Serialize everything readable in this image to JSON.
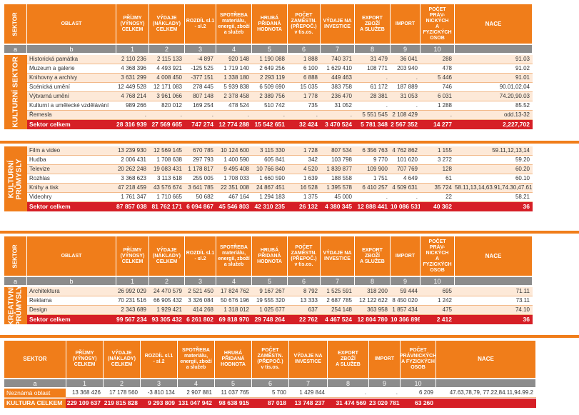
{
  "headers": {
    "sektor": "SEKTOR",
    "oblast": "OBLAST",
    "cols": [
      "PŘÍJMY\n(VÝNOSY)\nCELKEM",
      "VÝDAJE\n(NÁKLADY)\nCELKEM",
      "ROZDÍL sl.1\n- sl.2",
      "SPOTŘEBA\nmateriálu,\nenergií, zboží\na služeb",
      "HRUBÁ\nPŘIDANÁ\nHODNOTA",
      "POČET\nZAMĚSTN.\n(PŘEPOČ.)\nv tis.os.",
      "VÝDAJE NA\nINVESTICE",
      "EXPORT\nZBOŽÍ\nA SLUŽEB",
      "IMPORT",
      "POČET PRÁV-\nNICKÝCH\nA FYZICKÝCH\nOSOB",
      "NACE"
    ],
    "cols_last": [
      "PŘÍJMY\n(VÝNOSY)\nCELKEM",
      "VÝDAJE\n(NÁKLADY)\nCELKEM",
      "ROZDÍL sl.1\n- sl.2",
      "SPOTŘEBA\nmateriálu,\nenergií, zboží\na služeb",
      "HRUBÁ\nPŘIDANÁ\nHODNOTA",
      "POČET\nZAMĚSTN.\n(PŘEPOČ.)\nv tis.os.",
      "VÝDAJE NA\nINVESTICE",
      "EXPORT\nZBOŽÍ\nA SLUŽEB",
      "IMPORT",
      "POČET\nPRÁVNICKÝCH\nA FYZICKÝCH\nOSOB",
      "NACE"
    ],
    "index_row": [
      "a",
      "b",
      "1",
      "2",
      "3",
      "4",
      "5",
      "6",
      "7",
      "8",
      "9",
      "10",
      ""
    ],
    "index_row_last": [
      "a",
      "1",
      "2",
      "3",
      "4",
      "5",
      "6",
      "7",
      "8",
      "9",
      "10",
      ""
    ]
  },
  "sectors": [
    {
      "label": "KULTURNÍ SEKTOR",
      "rows": [
        [
          "Historická památka",
          "2 110 236",
          "2 115 133",
          "-4 897",
          "920 148",
          "1 190 088",
          "1 888",
          "740 371",
          "31 479",
          "36 041",
          "288",
          "91.03"
        ],
        [
          "Muzeum a galerie",
          "4 368 396",
          "4 493 921",
          "-125 525",
          "1 719 140",
          "2 649 256",
          "6 100",
          "1 629 410",
          "108 771",
          "203 940",
          "478",
          "91.02"
        ],
        [
          "Knihovny a archivy",
          "3 631 299",
          "4 008 450",
          "-377 151",
          "1 338 180",
          "2 293 119",
          "6 888",
          "449 463",
          ".",
          ".",
          "5 446",
          "91.01"
        ],
        [
          "Scénická umění",
          "12 449 528",
          "12 171 083",
          "278 445",
          "5 939 838",
          "6 509 690",
          "15 035",
          "383 758",
          "61 172",
          "187 889",
          "746",
          "90.01,02,04"
        ],
        [
          "Výtvarná umění",
          "4 768 214",
          "3 961 066",
          "807 148",
          "2 378 458",
          "2 389 756",
          "1 778",
          "236 470",
          "28 381",
          "31 053",
          "6 031",
          "74.20,90.03"
        ],
        [
          "Kulturní a umělecké vzdělávání",
          "989 266",
          "820 012",
          "169 254",
          "478 524",
          "510 742",
          "735",
          "31 052",
          ".",
          ".",
          "1 288",
          "85.52"
        ],
        [
          "Řemesla",
          ".",
          ".",
          ".",
          ".",
          ".",
          ".",
          ".",
          "5 551 545",
          "2 108 429",
          ".",
          "odd.13-32"
        ]
      ],
      "total": [
        "Sektor celkem",
        "28 316 939",
        "27 569 665",
        "747 274",
        "12 774 288",
        "15 542 651",
        "32 424",
        "3 470 524",
        "5 781 348",
        "2 567 352",
        "14 277",
        "2,227,702"
      ]
    },
    {
      "label": "KULTURNÍ\nPRŮMYSLY",
      "rows": [
        [
          "Film a video",
          "13 239 930",
          "12 569 145",
          "670 785",
          "10 124 600",
          "3 115 330",
          "1 728",
          "807 534",
          "6 356 763",
          "4 762 862",
          "1 155",
          "59.11,12,13,14"
        ],
        [
          "Hudba",
          "2 006 431",
          "1 708 638",
          "297 793",
          "1 400 590",
          "605 841",
          "342",
          "103 798",
          "9 770",
          "101 620",
          "3 272",
          "59.20"
        ],
        [
          "Televize",
          "20 262 248",
          "19 083 431",
          "1 178 817",
          "9 495 408",
          "10 766 840",
          "4 520",
          "1 839 877",
          "109 900",
          "707 769",
          "128",
          "60.20"
        ],
        [
          "Rozhlas",
          "3 368 623",
          "3 113 618",
          "255 005",
          "1 708 033",
          "1 660 590",
          "1 639",
          "188 558",
          "1 751",
          "4 649",
          "61",
          "60.10"
        ],
        [
          "Knihy a tisk",
          "47 218 459",
          "43 576 674",
          "3 641 785",
          "22 351 008",
          "24 867 451",
          "16 528",
          "1 395 578",
          "6 410 257",
          "4 509 631",
          "35 724",
          "58.11,13,14,63.91,74.30,47.61,62"
        ],
        [
          "Videohry",
          "1 761 347",
          "1 710 665",
          "50 682",
          "467 164",
          "1 294 183",
          "1 375",
          "45 000",
          ".",
          ".",
          "22",
          "58.21"
        ]
      ],
      "total": [
        "Sektor celkem",
        "87 857 038",
        "81 762 171",
        "6 094 867",
        "45 546 803",
        "42 310 235",
        "26 132",
        "4 380 345",
        "12 888 441",
        "10 086 531",
        "40 362",
        "36"
      ]
    },
    {
      "label": "KREATIVNÍ\nPRŮMYSLY",
      "rows": [
        [
          "Architektura",
          "26 992 029",
          "24 470 579",
          "2 521 450",
          "17 824 762",
          "9 167 267",
          "8 792",
          "1 525 591",
          "318 200",
          "59 444",
          "695",
          "71.11"
        ],
        [
          "Reklama",
          "70 231 516",
          "66 905 432",
          "3 326 084",
          "50 676 196",
          "19 555 320",
          "13 333",
          "2 687 785",
          "12 122 622",
          "8 450 020",
          "1 242",
          "73.11"
        ],
        [
          "Design",
          "2 343 689",
          "1 929 421",
          "414 268",
          "1 318 012",
          "1 025 677",
          "637",
          "254 148",
          "363 958",
          "1 857 434",
          "475",
          "74.10"
        ]
      ],
      "total": [
        "Sektor celkem",
        "99 567 234",
        "93 305 432",
        "6 261 802",
        "69 818 970",
        "29 748 264",
        "22 762",
        "4 467 524",
        "12 804 780",
        "10 366 898",
        "2 412",
        "36"
      ]
    }
  ],
  "summary": {
    "sektor_label": "SEKTOR",
    "unknown": [
      "Neznámá oblast",
      "13 368 426",
      "17 178 560",
      "-3 810 134",
      "2 907 881",
      "11 037 765",
      "5 700",
      "1 429 844",
      ".",
      ".",
      "6 209",
      "47.63,78,79, 77.22,84.11,94.99.2"
    ],
    "total": [
      "KULTURA CELKEM",
      "229 109 637",
      "219 815 828",
      "9 293 809",
      "131 047 942",
      "98 638 915",
      "87 018",
      "13 748 237",
      "31 474 569",
      "23 020 781",
      "63 260",
      ""
    ]
  },
  "colors": {
    "orange": "#f07d1a",
    "red": "#d61f26",
    "gray": "#8c8c8c",
    "light": "#fde9d8"
  }
}
